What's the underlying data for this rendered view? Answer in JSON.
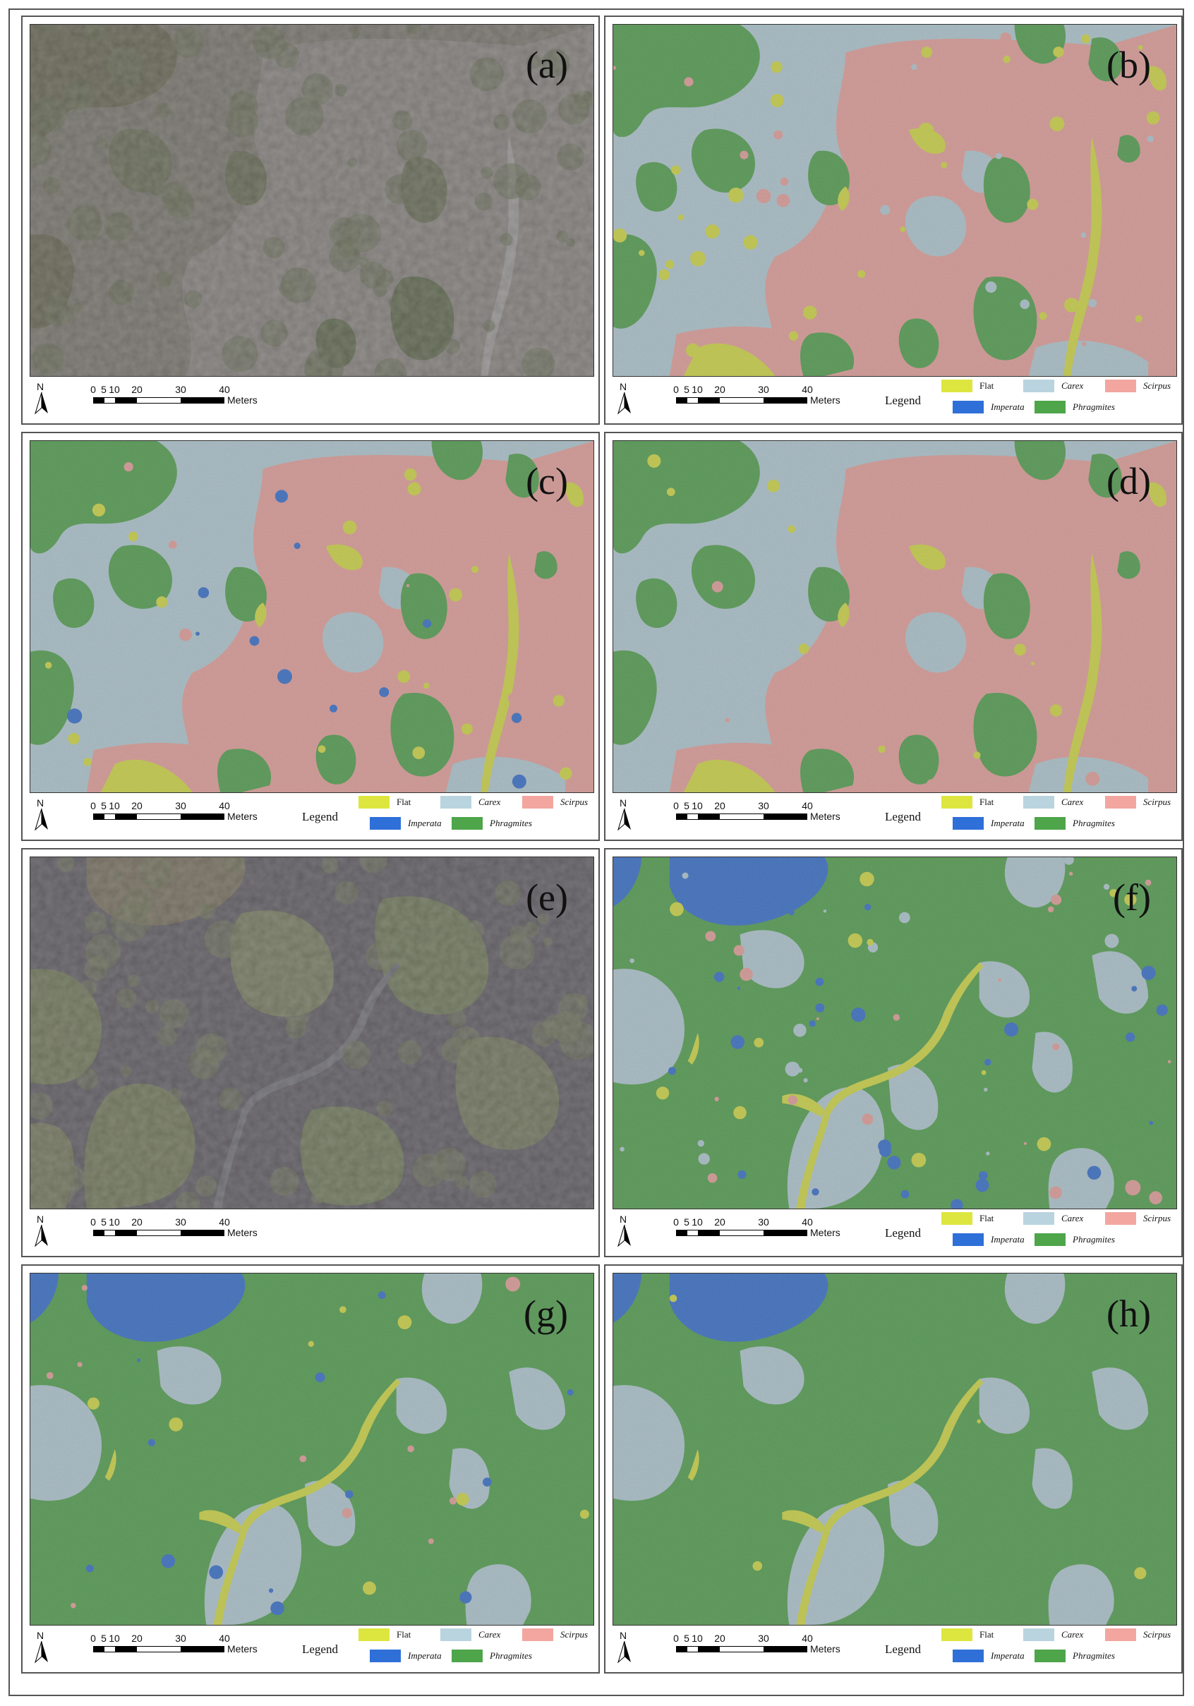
{
  "panels": [
    {
      "id": "a",
      "label": "(a)",
      "type": "photo",
      "scene": 1,
      "legend": false
    },
    {
      "id": "b",
      "label": "(b)",
      "type": "class",
      "scene": 1,
      "legend": true
    },
    {
      "id": "c",
      "label": "(c)",
      "type": "class",
      "scene": 1,
      "legend": true
    },
    {
      "id": "d",
      "label": "(d)",
      "type": "class",
      "scene": 1,
      "legend": true
    },
    {
      "id": "e",
      "label": "(e)",
      "type": "photo",
      "scene": 2,
      "legend": false
    },
    {
      "id": "f",
      "label": "(f)",
      "type": "class",
      "scene": 2,
      "legend": true
    },
    {
      "id": "g",
      "label": "(g)",
      "type": "class",
      "scene": 2,
      "legend": true
    },
    {
      "id": "h",
      "label": "(h)",
      "type": "class",
      "scene": 2,
      "legend": true
    }
  ],
  "north_label": "N",
  "scalebar": {
    "ticks": [
      "0",
      "5",
      "10",
      "20",
      "30",
      "40"
    ],
    "unit": "Meters"
  },
  "legend": {
    "title": "Legend",
    "classes": [
      {
        "name": "Flat",
        "color": "#dde63f"
      },
      {
        "name": "Carex",
        "color": "#b9d4df"
      },
      {
        "name": "Scirpus",
        "color": "#f3a6a0"
      },
      {
        "name": "Imperata",
        "color": "#2f6fd8"
      },
      {
        "name": "Phragmites",
        "color": "#4ea54a"
      }
    ]
  }
}
